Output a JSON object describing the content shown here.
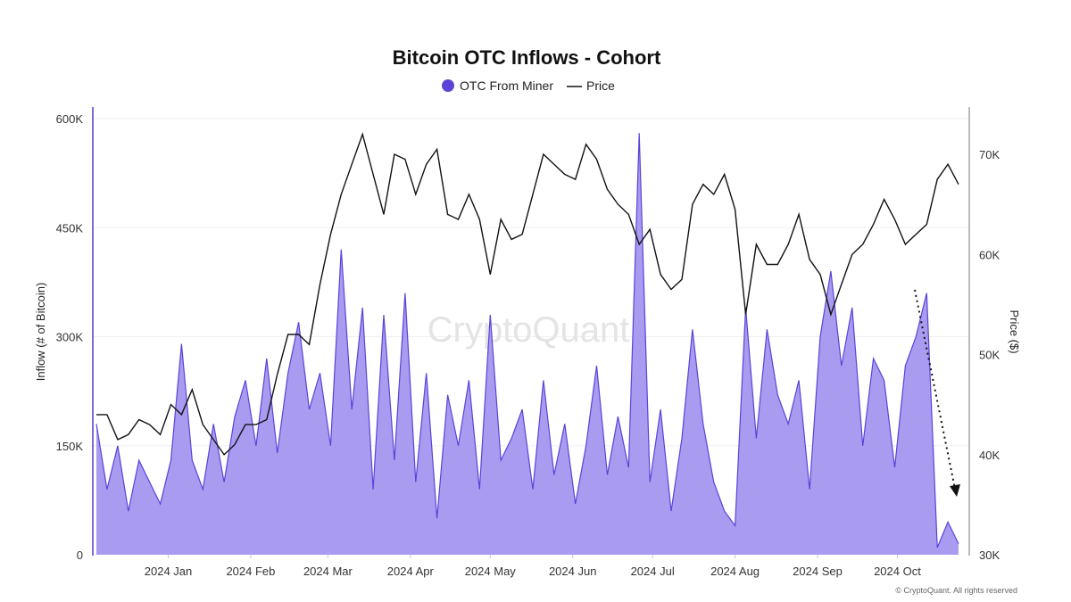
{
  "chart_data": {
    "type": "area+line",
    "title": "Bitcoin OTC Inflows - Cohort",
    "legend": {
      "placement": "top-center",
      "entries": [
        "OTC From Miner",
        "Price"
      ]
    },
    "ylabel_left": "Inflow (# of Bitcoin)",
    "ylabel_right": "Price ($)",
    "ylim_left": [
      0,
      600000
    ],
    "ylim_right": [
      30000,
      73000
    ],
    "yticks_left": [
      "0",
      "150K",
      "300K",
      "450K",
      "600K"
    ],
    "yticks_left_values": [
      0,
      150000,
      300000,
      450000,
      600000
    ],
    "yticks_right": [
      "30K",
      "40K",
      "50K",
      "60K",
      "70K"
    ],
    "yticks_right_values": [
      30000,
      40000,
      50000,
      60000,
      70000
    ],
    "xticks": [
      "2024 Jan",
      "2024 Feb",
      "2024 Mar",
      "2024 Apr",
      "2024 May",
      "2024 Jun",
      "2024 Jul",
      "2024 Aug",
      "2024 Sep",
      "2024 Oct"
    ],
    "xtick_dates": [
      "2024-01-01",
      "2024-02-01",
      "2024-03-01",
      "2024-04-01",
      "2024-05-01",
      "2024-06-01",
      "2024-07-01",
      "2024-08-01",
      "2024-09-01",
      "2024-10-01"
    ],
    "xlim": [
      "2023-12-05",
      "2024-10-26"
    ],
    "grid": "horizontal",
    "watermark": "CryptoQuant",
    "copyright": "© CryptoQuant. All rights reserved",
    "annotation": "dotted downward arrow over October inflows",
    "colors": {
      "inflow_fill": "#a99bf0",
      "inflow_line": "#5a43d8",
      "price_line": "#111111",
      "legend_dot": "#5a43d8"
    },
    "x": [
      "2023-12-05",
      "2023-12-09",
      "2023-12-13",
      "2023-12-17",
      "2023-12-21",
      "2023-12-25",
      "2023-12-29",
      "2024-01-02",
      "2024-01-06",
      "2024-01-10",
      "2024-01-14",
      "2024-01-18",
      "2024-01-22",
      "2024-01-26",
      "2024-01-30",
      "2024-02-03",
      "2024-02-07",
      "2024-02-11",
      "2024-02-15",
      "2024-02-19",
      "2024-02-23",
      "2024-02-27",
      "2024-03-02",
      "2024-03-06",
      "2024-03-10",
      "2024-03-14",
      "2024-03-18",
      "2024-03-22",
      "2024-03-26",
      "2024-03-30",
      "2024-04-03",
      "2024-04-07",
      "2024-04-11",
      "2024-04-15",
      "2024-04-19",
      "2024-04-23",
      "2024-04-27",
      "2024-05-01",
      "2024-05-05",
      "2024-05-09",
      "2024-05-13",
      "2024-05-17",
      "2024-05-21",
      "2024-05-25",
      "2024-05-29",
      "2024-06-02",
      "2024-06-06",
      "2024-06-10",
      "2024-06-14",
      "2024-06-18",
      "2024-06-22",
      "2024-06-26",
      "2024-06-30",
      "2024-07-04",
      "2024-07-08",
      "2024-07-12",
      "2024-07-16",
      "2024-07-20",
      "2024-07-24",
      "2024-07-28",
      "2024-08-01",
      "2024-08-05",
      "2024-08-09",
      "2024-08-13",
      "2024-08-17",
      "2024-08-21",
      "2024-08-25",
      "2024-08-29",
      "2024-09-02",
      "2024-09-06",
      "2024-09-10",
      "2024-09-14",
      "2024-09-18",
      "2024-09-22",
      "2024-09-26",
      "2024-09-30",
      "2024-10-04",
      "2024-10-08",
      "2024-10-12",
      "2024-10-16",
      "2024-10-20",
      "2024-10-24"
    ],
    "series": [
      {
        "name": "OTC From Miner",
        "axis": "left",
        "values": [
          180000,
          90000,
          150000,
          60000,
          130000,
          100000,
          70000,
          130000,
          290000,
          130000,
          90000,
          180000,
          100000,
          190000,
          240000,
          150000,
          270000,
          140000,
          250000,
          320000,
          200000,
          250000,
          150000,
          420000,
          200000,
          340000,
          90000,
          330000,
          130000,
          360000,
          100000,
          250000,
          50000,
          220000,
          150000,
          240000,
          90000,
          330000,
          130000,
          160000,
          200000,
          90000,
          240000,
          110000,
          180000,
          70000,
          150000,
          260000,
          110000,
          190000,
          120000,
          580000,
          100000,
          200000,
          60000,
          160000,
          310000,
          180000,
          100000,
          60000,
          40000,
          340000,
          160000,
          310000,
          220000,
          180000,
          240000,
          90000,
          300000,
          390000,
          260000,
          340000,
          150000,
          270000,
          240000,
          120000,
          260000,
          300000,
          360000,
          10000,
          45000,
          15000
        ]
      },
      {
        "name": "Price",
        "axis": "right",
        "values": [
          44000,
          44000,
          41500,
          42000,
          43500,
          43000,
          42000,
          45000,
          44000,
          46500,
          43000,
          41500,
          40000,
          41000,
          43000,
          43000,
          43500,
          48000,
          52000,
          52000,
          51000,
          57000,
          62000,
          66000,
          69000,
          72000,
          68000,
          64000,
          70000,
          69500,
          66000,
          69000,
          70500,
          64000,
          63500,
          66000,
          63500,
          58000,
          63500,
          61500,
          62000,
          66000,
          70000,
          69000,
          68000,
          67500,
          71000,
          69500,
          66500,
          65000,
          64000,
          61000,
          62500,
          58000,
          56500,
          57500,
          65000,
          67000,
          66000,
          68000,
          64500,
          54000,
          61000,
          59000,
          59000,
          61000,
          64000,
          59500,
          58000,
          54000,
          57000,
          60000,
          61000,
          63000,
          65500,
          63500,
          61000,
          62000,
          63000,
          67500,
          69000,
          67000
        ]
      }
    ]
  }
}
